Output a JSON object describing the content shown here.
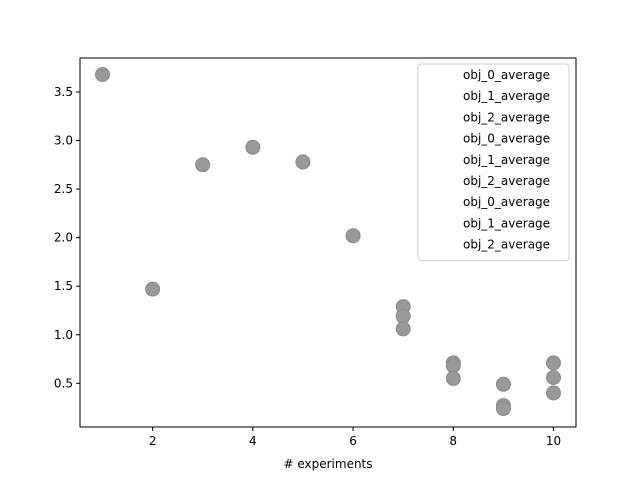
{
  "chart_data": {
    "type": "scatter",
    "title": "",
    "xlabel": "# experiments",
    "ylabel": "",
    "xlim": [
      0.55,
      10.45
    ],
    "ylim": [
      0.05,
      3.85
    ],
    "xticks": [
      2,
      4,
      6,
      8,
      10
    ],
    "yticks": [
      0.5,
      1.0,
      1.5,
      2.0,
      2.5,
      3.0,
      3.5
    ],
    "xtick_labels": [
      "2",
      "4",
      "6",
      "8",
      "10"
    ],
    "ytick_labels": [
      "0.5",
      "1.0",
      "1.5",
      "2.0",
      "2.5",
      "3.0",
      "3.5"
    ],
    "grid": false,
    "legend_position": "top-right",
    "marker_color": "#999999",
    "legend": [
      "obj_0_average",
      "obj_1_average",
      "obj_2_average",
      "obj_0_average",
      "obj_1_average",
      "obj_2_average",
      "obj_0_average",
      "obj_1_average",
      "obj_2_average"
    ],
    "points": [
      {
        "x": 1,
        "y": 3.68
      },
      {
        "x": 2,
        "y": 1.47
      },
      {
        "x": 3,
        "y": 2.75
      },
      {
        "x": 4,
        "y": 2.93
      },
      {
        "x": 5,
        "y": 2.78
      },
      {
        "x": 6,
        "y": 2.02
      },
      {
        "x": 7,
        "y": 1.29
      },
      {
        "x": 7,
        "y": 1.19
      },
      {
        "x": 7,
        "y": 1.06
      },
      {
        "x": 8,
        "y": 0.71
      },
      {
        "x": 8,
        "y": 0.68
      },
      {
        "x": 8,
        "y": 0.55
      },
      {
        "x": 9,
        "y": 0.49
      },
      {
        "x": 9,
        "y": 0.27
      },
      {
        "x": 9,
        "y": 0.24
      },
      {
        "x": 10,
        "y": 0.71
      },
      {
        "x": 10,
        "y": 0.56
      },
      {
        "x": 10,
        "y": 0.4
      }
    ]
  }
}
